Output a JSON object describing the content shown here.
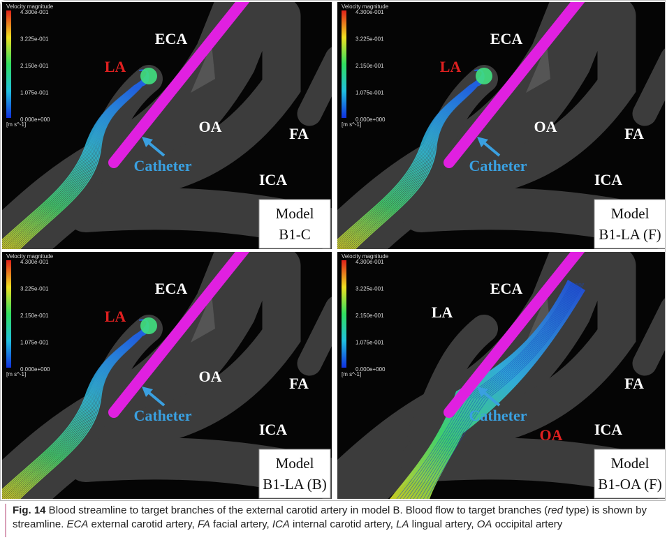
{
  "colorbar": {
    "title": "Velocity magnitude",
    "ticks": [
      "4.300e-001",
      "3.225e-001",
      "2.150e-001",
      "1.075e-001",
      "0.000e+000"
    ],
    "unit": "[m s^-1]"
  },
  "panels": [
    {
      "eca": "ECA",
      "la": "LA",
      "oa": "OA",
      "fa": "FA",
      "ica": "ICA",
      "catheter": "Catheter",
      "model": "Model",
      "name": "B1-C",
      "highlight": "LA"
    },
    {
      "eca": "ECA",
      "la": "LA",
      "oa": "OA",
      "fa": "FA",
      "ica": "ICA",
      "catheter": "Catheter",
      "model": "Model",
      "name": "B1-LA (F)",
      "highlight": "LA"
    },
    {
      "eca": "ECA",
      "la": "LA",
      "oa": "OA",
      "fa": "FA",
      "ica": "ICA",
      "catheter": "Catheter",
      "model": "Model",
      "name": "B1-LA (B)",
      "highlight": "LA"
    },
    {
      "eca": "ECA",
      "la": "LA",
      "oa": "OA",
      "fa": "FA",
      "ica": "ICA",
      "catheter": "Catheter",
      "model": "Model",
      "name": "B1-OA (F)",
      "highlight": "OA"
    }
  ],
  "caption": {
    "label": "Fig. 14",
    "parts": [
      {
        "text": " Blood streamline to target branches of the external carotid artery in model B. Blood flow to target branches ("
      },
      {
        "text": "red",
        "italic": true
      },
      {
        "text": " type) is shown by streamline. "
      },
      {
        "text": "ECA",
        "italic": true
      },
      {
        "text": " external carotid artery, "
      },
      {
        "text": "FA",
        "italic": true
      },
      {
        "text": " facial artery, "
      },
      {
        "text": "ICA",
        "italic": true
      },
      {
        "text": " internal carotid artery, "
      },
      {
        "text": "LA",
        "italic": true
      },
      {
        "text": " lingual artery, "
      },
      {
        "text": "OA",
        "italic": true
      },
      {
        "text": " occipital artery"
      }
    ]
  }
}
